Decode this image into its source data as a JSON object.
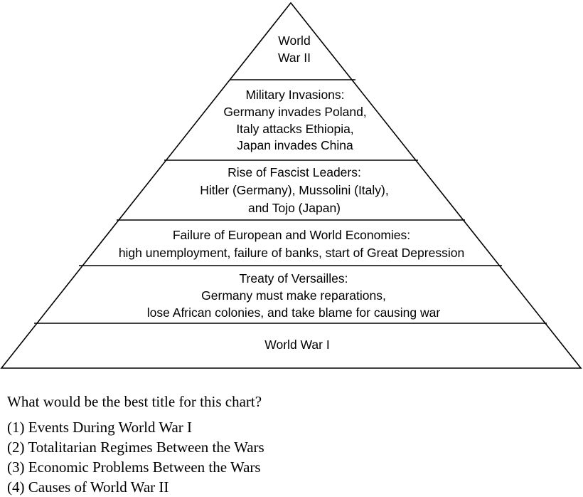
{
  "diagram": {
    "levels": [
      {
        "lines": [
          "World",
          "War II"
        ]
      },
      {
        "lines": [
          "Military Invasions:",
          "Germany invades Poland,",
          "Italy attacks Ethiopia,",
          "Japan invades China"
        ]
      },
      {
        "lines": [
          "Rise of Fascist Leaders:",
          "Hitler (Germany), Mussolini (Italy),",
          "and Tojo (Japan)"
        ]
      },
      {
        "lines": [
          "Failure of European and World Economies:",
          "high unemployment, failure of banks, start of Great Depression"
        ]
      },
      {
        "lines": [
          "Treaty of Versailles:",
          "Germany must make reparations,",
          "lose African colonies, and take blame for causing war"
        ]
      },
      {
        "lines": [
          "World War I"
        ]
      }
    ]
  },
  "question": {
    "prompt": "What would be the best title for this chart?",
    "options": [
      "(1) Events During World War I",
      "(2) Totalitarian Regimes Between the Wars",
      "(3) Economic Problems Between the Wars",
      "(4) Causes of World War II"
    ]
  }
}
